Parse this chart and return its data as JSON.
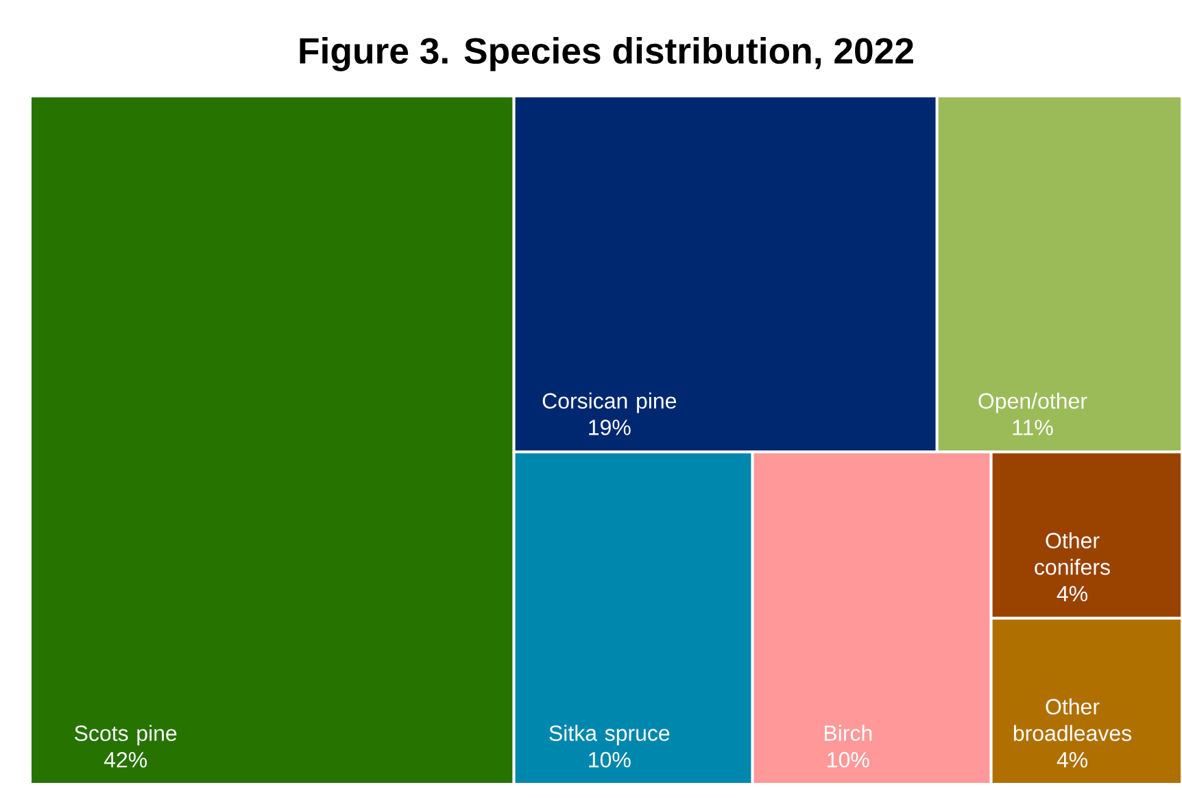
{
  "chart_data": {
    "type": "other",
    "title": "Figure 3. Species distribution, 2022",
    "categories": [
      "Scots pine",
      "Corsican pine",
      "Open/other",
      "Sitka spruce",
      "Birch",
      "Other conifers",
      "Other broadleaves"
    ],
    "values": [
      42,
      19,
      11,
      10,
      10,
      4,
      4
    ],
    "value_labels": [
      "42%",
      "19%",
      "11%",
      "10%",
      "10%",
      "4%",
      "4%"
    ],
    "colors": [
      "#267300",
      "#002870",
      "#9bbb59",
      "#0087ad",
      "#ff9999",
      "#9a4200",
      "#b07000"
    ]
  }
}
